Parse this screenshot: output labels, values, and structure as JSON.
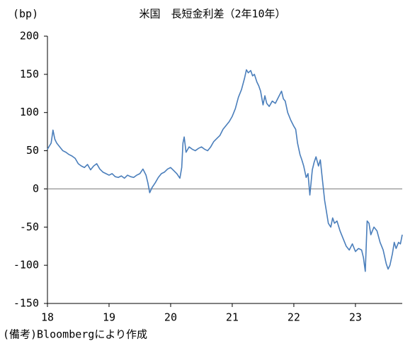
{
  "chart_data": {
    "type": "line",
    "title": "米国　長短金利差（2年10年）",
    "y_unit": "(bp)",
    "note": "(備考)Bloombergにより作成",
    "x": [
      18.0,
      18.03,
      18.06,
      18.09,
      18.12,
      18.15,
      18.2,
      18.25,
      18.3,
      18.35,
      18.4,
      18.45,
      18.5,
      18.55,
      18.6,
      18.65,
      18.7,
      18.75,
      18.8,
      18.85,
      18.9,
      18.95,
      19.0,
      19.05,
      19.1,
      19.15,
      19.2,
      19.25,
      19.3,
      19.35,
      19.4,
      19.45,
      19.5,
      19.55,
      19.6,
      19.63,
      19.66,
      19.7,
      19.75,
      19.8,
      19.85,
      19.9,
      19.95,
      20.0,
      20.05,
      20.1,
      20.15,
      20.18,
      20.2,
      20.22,
      20.25,
      20.3,
      20.35,
      20.4,
      20.45,
      20.5,
      20.55,
      20.6,
      20.65,
      20.7,
      20.75,
      20.8,
      20.85,
      20.9,
      20.95,
      21.0,
      21.05,
      21.1,
      21.15,
      21.2,
      21.23,
      21.26,
      21.3,
      21.33,
      21.36,
      21.4,
      21.43,
      21.46,
      21.5,
      21.53,
      21.56,
      21.6,
      21.65,
      21.7,
      21.75,
      21.8,
      21.83,
      21.86,
      21.9,
      21.95,
      22.0,
      22.03,
      22.06,
      22.1,
      22.13,
      22.16,
      22.2,
      22.23,
      22.26,
      22.3,
      22.33,
      22.36,
      22.4,
      22.43,
      22.46,
      22.5,
      22.53,
      22.56,
      22.6,
      22.63,
      22.66,
      22.7,
      22.75,
      22.8,
      22.85,
      22.9,
      22.95,
      23.0,
      23.05,
      23.1,
      23.13,
      23.16,
      23.19,
      23.22,
      23.25,
      23.3,
      23.35,
      23.4,
      23.45,
      23.5,
      23.53,
      23.56,
      23.6,
      23.63,
      23.66,
      23.7,
      23.73,
      23.76
    ],
    "series": [
      {
        "name": "長短金利差",
        "color": "#4a7ebb",
        "values": [
          52,
          56,
          60,
          77,
          65,
          60,
          55,
          50,
          48,
          45,
          43,
          40,
          33,
          30,
          28,
          32,
          25,
          30,
          33,
          26,
          22,
          20,
          18,
          20,
          16,
          15,
          17,
          14,
          18,
          16,
          15,
          18,
          20,
          26,
          18,
          8,
          -5,
          2,
          8,
          15,
          20,
          22,
          26,
          28,
          24,
          20,
          14,
          28,
          60,
          68,
          48,
          55,
          52,
          50,
          53,
          55,
          52,
          50,
          55,
          62,
          66,
          70,
          78,
          83,
          88,
          95,
          105,
          120,
          130,
          145,
          156,
          152,
          155,
          148,
          150,
          140,
          135,
          128,
          110,
          122,
          112,
          108,
          115,
          112,
          120,
          128,
          118,
          115,
          100,
          90,
          82,
          78,
          60,
          45,
          38,
          30,
          15,
          20,
          -8,
          25,
          35,
          42,
          30,
          38,
          15,
          -15,
          -30,
          -45,
          -50,
          -38,
          -45,
          -42,
          -55,
          -65,
          -75,
          -80,
          -72,
          -82,
          -78,
          -80,
          -90,
          -108,
          -42,
          -45,
          -60,
          -50,
          -55,
          -70,
          -80,
          -98,
          -105,
          -100,
          -85,
          -70,
          -78,
          -70,
          -72,
          -60
        ]
      }
    ],
    "xlim": [
      18,
      23.76
    ],
    "xticks": [
      18,
      19,
      20,
      21,
      22,
      23
    ],
    "ylim": [
      -150,
      200
    ],
    "yticks": [
      -150,
      -100,
      -50,
      0,
      50,
      100,
      150,
      200
    ],
    "zero_line": true
  }
}
